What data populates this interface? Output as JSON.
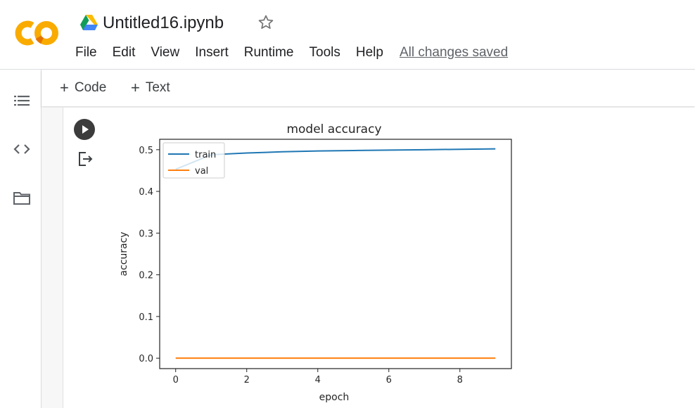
{
  "header": {
    "logo_text": "CO",
    "notebook_title": "Untitled16.ipynb",
    "saved_status": "All changes saved"
  },
  "menu": [
    {
      "label": "File",
      "name": "menu-file"
    },
    {
      "label": "Edit",
      "name": "menu-edit"
    },
    {
      "label": "View",
      "name": "menu-view"
    },
    {
      "label": "Insert",
      "name": "menu-insert"
    },
    {
      "label": "Runtime",
      "name": "menu-runtime"
    },
    {
      "label": "Tools",
      "name": "menu-tools"
    },
    {
      "label": "Help",
      "name": "menu-help"
    }
  ],
  "toolbar": {
    "code_label": "Code",
    "text_label": "Text"
  },
  "rail_icons": [
    "table-of-contents-icon",
    "code-snippets-icon",
    "files-icon"
  ],
  "colors": {
    "logo_orange": "#f9ab00",
    "logo_orange_dark": "#e37400",
    "train_series": "#1f77b4",
    "val_series": "#ff7f0e"
  },
  "chart_data": {
    "type": "line",
    "title": "model accuracy",
    "xlabel": "epoch",
    "ylabel": "accuracy",
    "x": [
      0,
      1,
      2,
      3,
      4,
      5,
      6,
      7,
      8,
      9
    ],
    "xlim": [
      -0.45,
      9.45
    ],
    "ylim": [
      -0.025,
      0.525
    ],
    "xticks": [
      0,
      2,
      4,
      6,
      8
    ],
    "yticks": [
      0.0,
      0.1,
      0.2,
      0.3,
      0.4,
      0.5
    ],
    "legend_position": "upper-left",
    "series": [
      {
        "name": "train",
        "color": "#1f77b4",
        "values": [
          0.453,
          0.488,
          0.492,
          0.495,
          0.497,
          0.498,
          0.499,
          0.5,
          0.501,
          0.502
        ]
      },
      {
        "name": "val",
        "color": "#ff7f0e",
        "values": [
          0.0,
          0.0,
          0.0,
          0.0,
          0.0,
          0.0,
          0.0,
          0.0,
          0.0,
          0.0
        ]
      }
    ]
  }
}
